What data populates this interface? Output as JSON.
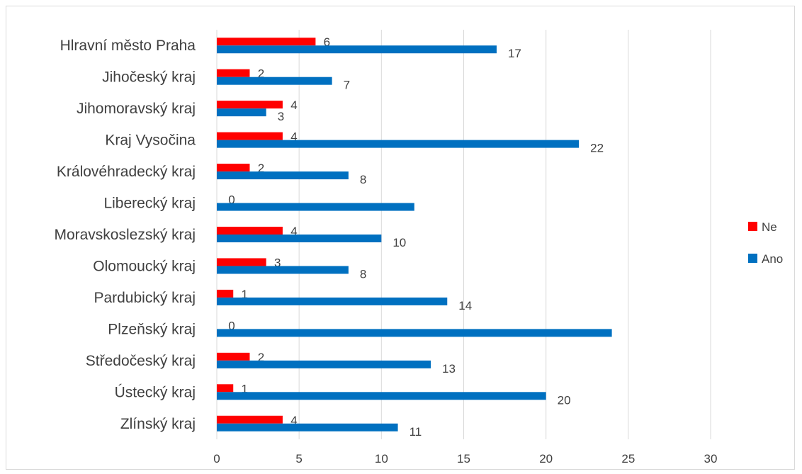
{
  "chart_data": {
    "type": "bar",
    "orientation": "horizontal",
    "categories": [
      "Hlravní město Praha",
      "Jihočeský kraj",
      "Jihomoravský kraj",
      "Kraj Vysočina",
      "Královéhradecký kraj",
      "Liberecký kraj",
      "Moravskoslezský kraj",
      "Olomoucký kraj",
      "Pardubický kraj",
      "Plzeňský kraj",
      "Středočeský kraj",
      "Ústecký kraj",
      "Zlínský kraj"
    ],
    "series": [
      {
        "name": "Ne",
        "color": "#ff0000",
        "values": [
          6,
          2,
          4,
          4,
          2,
          0,
          4,
          3,
          1,
          0,
          2,
          1,
          4
        ],
        "labels": [
          "6",
          "2",
          "4",
          "4",
          "2",
          "0",
          "4",
          "3",
          "1",
          "0",
          "2",
          "1",
          "4"
        ]
      },
      {
        "name": "Ano",
        "color": "#0070c0",
        "values": [
          17,
          7,
          3,
          22,
          8,
          12,
          10,
          8,
          14,
          24,
          13,
          20,
          11
        ],
        "labels": [
          "17",
          "7",
          "3",
          "22",
          "8",
          "",
          "10",
          "8",
          "14",
          "",
          "13",
          "20",
          "11"
        ]
      }
    ],
    "xlim": [
      0,
      30
    ],
    "xticks": [
      "0",
      "5",
      "10",
      "15",
      "20",
      "25",
      "30"
    ],
    "grid": true,
    "legend": "right",
    "title": "",
    "xlabel": "",
    "ylabel": ""
  }
}
